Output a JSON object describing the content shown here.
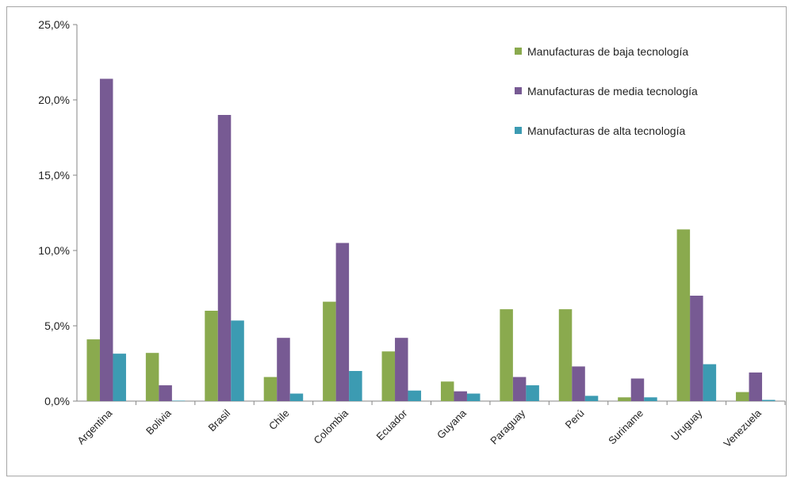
{
  "chart_data": {
    "type": "bar",
    "title": "",
    "xlabel": "",
    "ylabel": "",
    "categories": [
      "Argentina",
      "Bolivia",
      "Brasil",
      "Chile",
      "Colombia",
      "Ecuador",
      "Guyana",
      "Paraguay",
      "Perú",
      "Suriname",
      "Uruguay",
      "Venezuela"
    ],
    "series": [
      {
        "name": "Manufacturas de baja tecnología",
        "color": "#8aaa4e",
        "values": [
          4.1,
          3.2,
          6.0,
          1.6,
          6.6,
          3.3,
          1.3,
          6.1,
          6.1,
          0.25,
          11.4,
          0.6
        ]
      },
      {
        "name": "Manufacturas de media tecnología",
        "color": "#775a93",
        "values": [
          21.4,
          1.05,
          19.0,
          4.2,
          10.5,
          4.2,
          0.65,
          1.6,
          2.3,
          1.5,
          7.0,
          1.9
        ]
      },
      {
        "name": "Manufacturas de alta tecnología",
        "color": "#3c9bb2",
        "values": [
          3.15,
          0.03,
          5.35,
          0.5,
          2.0,
          0.7,
          0.5,
          1.05,
          0.35,
          0.25,
          2.45,
          0.08
        ]
      }
    ],
    "ylim": [
      0,
      25
    ],
    "yticks": [
      0,
      5,
      10,
      15,
      20,
      25
    ],
    "ytick_labels": [
      "0,0%",
      "5,0%",
      "10,0%",
      "15,0%",
      "20,0%",
      "25,0%"
    ],
    "grid": false,
    "legend_position": "top-right"
  }
}
